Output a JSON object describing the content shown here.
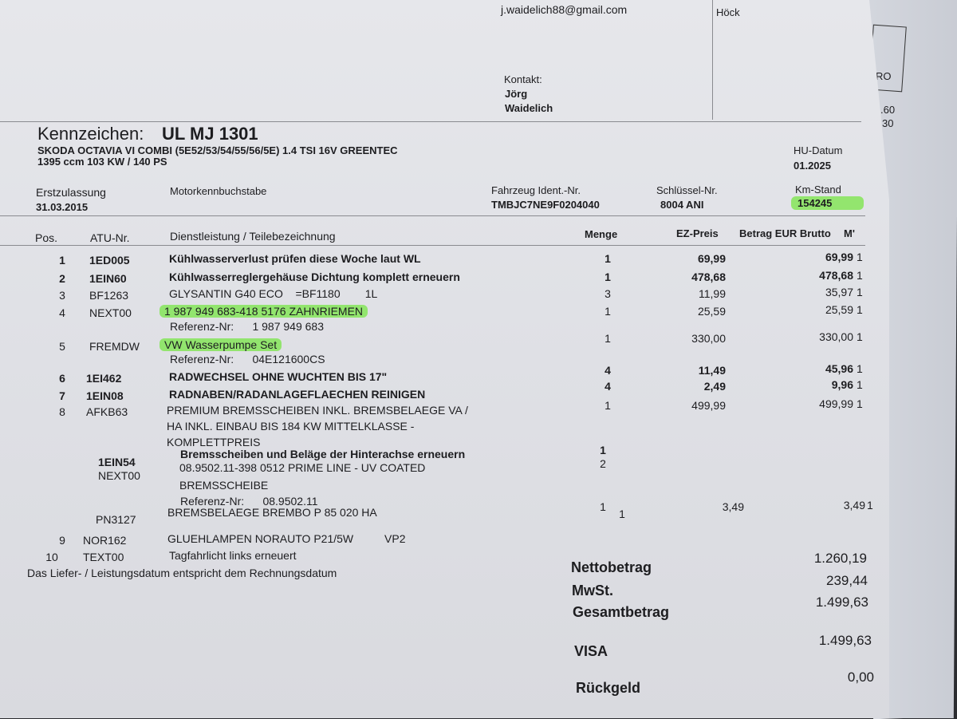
{
  "header": {
    "email": "j.waidelich88@gmail.com",
    "cashier_name": "Höck",
    "contact_label": "Kontakt:",
    "contact_first": "Jörg",
    "contact_last": "Waidelich",
    "side_fragments": [
      "RO",
      ".60",
      "30"
    ]
  },
  "vehicle": {
    "plate_label": "Kennzeichen:",
    "plate": "UL MJ 1301",
    "model": "SKODA OCTAVIA VI COMBI (5E52/53/54/55/56/5E) 1.4 TSI 16V GREENTEC",
    "engine": "1395 ccm 103 KW / 140 PS",
    "hu_label": "HU-Datum",
    "hu_value": "01.2025",
    "first_reg_label": "Erstzulassung",
    "first_reg_value": "31.03.2015",
    "engine_code_label": "Motorkennbuchstabe",
    "vin_label": "Fahrzeug Ident.-Nr.",
    "vin_value": "TMBJC7NE9F0204040",
    "key_label": "Schlüssel-Nr.",
    "key_value": "8004 ANI",
    "km_label": "Km-Stand",
    "km_value": "154245",
    "highlight_color": "#7fe04a"
  },
  "table": {
    "headers": {
      "pos": "Pos.",
      "atu": "ATU-Nr.",
      "desc": "Dienstleistung / Teilebezeichnung",
      "qty": "Menge",
      "unit": "EZ-Preis",
      "total": "Betrag EUR Brutto",
      "mwst": "M'"
    },
    "rows": [
      {
        "pos": "1",
        "atu": "1ED005",
        "desc": "Kühlwasserverlust prüfen diese Woche laut WL",
        "qty": "1",
        "unit": "69,99",
        "total": "69,99",
        "m": "1"
      },
      {
        "pos": "2",
        "atu": "1EIN60",
        "desc": "Kühlwasserreglergehäuse Dichtung komplett erneuern",
        "qty": "1",
        "unit": "478,68",
        "total": "478,68",
        "m": "1"
      },
      {
        "pos": "3",
        "atu": "BF1263",
        "desc": "GLYSANTIN G40 ECO    =BF1180        1L",
        "qty": "3",
        "unit": "11,99",
        "total": "35,97",
        "m": "1"
      },
      {
        "pos": "4",
        "atu": "NEXT00",
        "desc": "1 987 949 683-418 5176 ZAHNRIEMEN",
        "ref": "Referenz-Nr:      1 987 949 683",
        "qty": "1",
        "unit": "25,59",
        "total": "25,59",
        "m": "1"
      },
      {
        "pos": "5",
        "atu": "FREMDW",
        "desc": "VW Wasserpumpe Set",
        "ref": "Referenz-Nr:      04E121600CS",
        "qty": "1",
        "unit": "330,00",
        "total": "330,00",
        "m": "1"
      },
      {
        "pos": "6",
        "atu": "1EI462",
        "desc": "RADWECHSEL OHNE WUCHTEN BIS 17\"",
        "qty": "4",
        "unit": "11,49",
        "total": "45,96",
        "m": "1"
      },
      {
        "pos": "7",
        "atu": "1EIN08",
        "desc": "RADNABEN/RADANLAGEFLAECHEN REINIGEN",
        "qty": "4",
        "unit": "2,49",
        "total": "9,96",
        "m": "1"
      },
      {
        "pos": "8",
        "atu": "AFKB63",
        "desc": [
          "PREMIUM BREMSSCHEIBEN INKL. BREMSBELAEGE VA /",
          "HA INKL. EINBAU BIS 184 KW MITTELKLASSE -",
          "KOMPLETTPREIS"
        ],
        "qty": "1",
        "unit": "499,99",
        "total": "499,99",
        "m": "1",
        "sub": [
          {
            "atu": "1EIN54",
            "desc": "Bremsscheiben und Beläge der Hinterachse erneuern",
            "qty": "1"
          },
          {
            "atu": "NEXT00",
            "desc": [
              "08.9502.11-398 0512 PRIME LINE - UV COATED",
              "BREMSSCHEIBE"
            ],
            "ref": "Referenz-Nr:      08.9502.11",
            "qty": "2"
          },
          {
            "atu": "PN3127",
            "desc": "BREMSBELAEGE BREMBO P 85 020 HA",
            "qty": "1"
          }
        ]
      },
      {
        "pos": "9",
        "atu": "NOR162",
        "desc": "GLUEHLAMPEN NORAUTO P21/5W          VP2",
        "qty": "1",
        "unit": "3,49",
        "total": "3,49",
        "m": "1"
      },
      {
        "pos": "10",
        "atu": "TEXT00",
        "desc": "Tagfahrlicht links erneuert"
      }
    ],
    "footnote": "Das Liefer- / Leistungsdatum entspricht dem Rechnungsdatum"
  },
  "totals": {
    "net_label": "Nettobetrag",
    "net": "1.260,19",
    "vat_label": "MwSt.",
    "vat": "239,44",
    "gross_label": "Gesamtbetrag",
    "gross": "1.499,63",
    "payment_label": "VISA",
    "payment": "1.499,63",
    "change_label": "Rückgeld",
    "change": "0,00"
  }
}
